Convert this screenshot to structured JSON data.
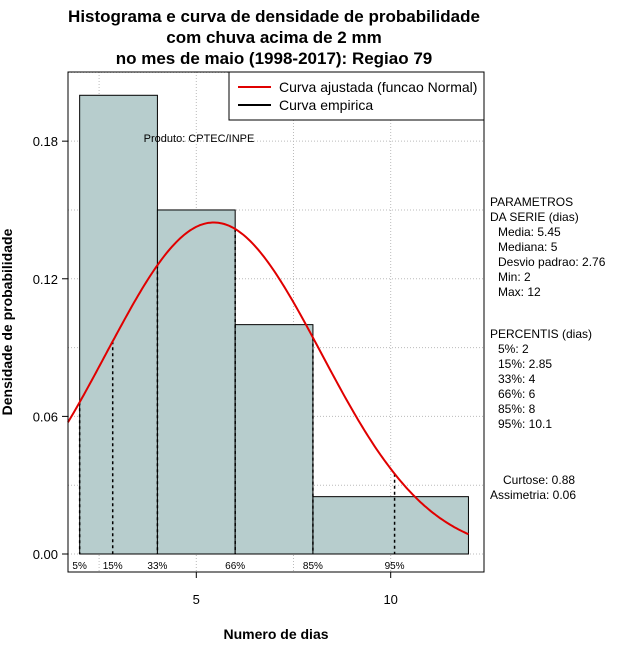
{
  "chart_data": {
    "type": "bar",
    "title": [
      "Histograma e curva de densidade de probabilidade",
      "com chuva acima de 2 mm",
      "no mes de maio (1998-2017): Regiao 79"
    ],
    "xlabel": "Numero de dias",
    "ylabel": "Densidade de probabilidade",
    "xlim": [
      1.7,
      12.4
    ],
    "ylim": [
      0,
      0.218
    ],
    "x_ticks": [
      5,
      10
    ],
    "y_ticks": [
      0.0,
      0.06,
      0.12,
      0.18
    ],
    "y_tick_labels": [
      "0.00",
      "0.06",
      "0.12",
      "0.18"
    ],
    "bins": [
      {
        "from": 2,
        "to": 4,
        "density": 0.2
      },
      {
        "from": 4,
        "to": 6,
        "density": 0.15
      },
      {
        "from": 6,
        "to": 8,
        "density": 0.1
      },
      {
        "from": 8,
        "to": 12,
        "density": 0.025
      }
    ],
    "normal_curve": {
      "mean": 5.45,
      "sd": 2.76,
      "color": "#e00000"
    },
    "bar_color": "#b7cdcd",
    "percentile_lines": [
      {
        "label": "5%",
        "x": 2
      },
      {
        "label": "15%",
        "x": 2.85
      },
      {
        "label": "33%",
        "x": 4
      },
      {
        "label": "66%",
        "x": 6
      },
      {
        "label": "85%",
        "x": 8
      },
      {
        "label": "95%",
        "x": 10.1
      }
    ],
    "legend": [
      {
        "label": "Curva ajustada (funcao Normal)",
        "color": "#e00000"
      },
      {
        "label": "Curva empirica",
        "color": "#000000"
      }
    ],
    "source": "Produto: CPTEC/INPE"
  },
  "stats": {
    "params_title": [
      "PARAMETROS",
      "DA SERIE (dias)"
    ],
    "params": [
      "Media: 5.45",
      "Mediana: 5",
      "Desvio padrao: 2.76",
      "Min: 2",
      "Max: 12"
    ],
    "percentis_title": "PERCENTIS (dias)",
    "percentis": [
      "5%: 2",
      "15%: 2.85",
      "33%: 4",
      "66%: 6",
      "85%: 8",
      "95%: 10.1"
    ],
    "curtose": "Curtose: 0.88",
    "assimetria": "Assimetria: 0.06"
  }
}
